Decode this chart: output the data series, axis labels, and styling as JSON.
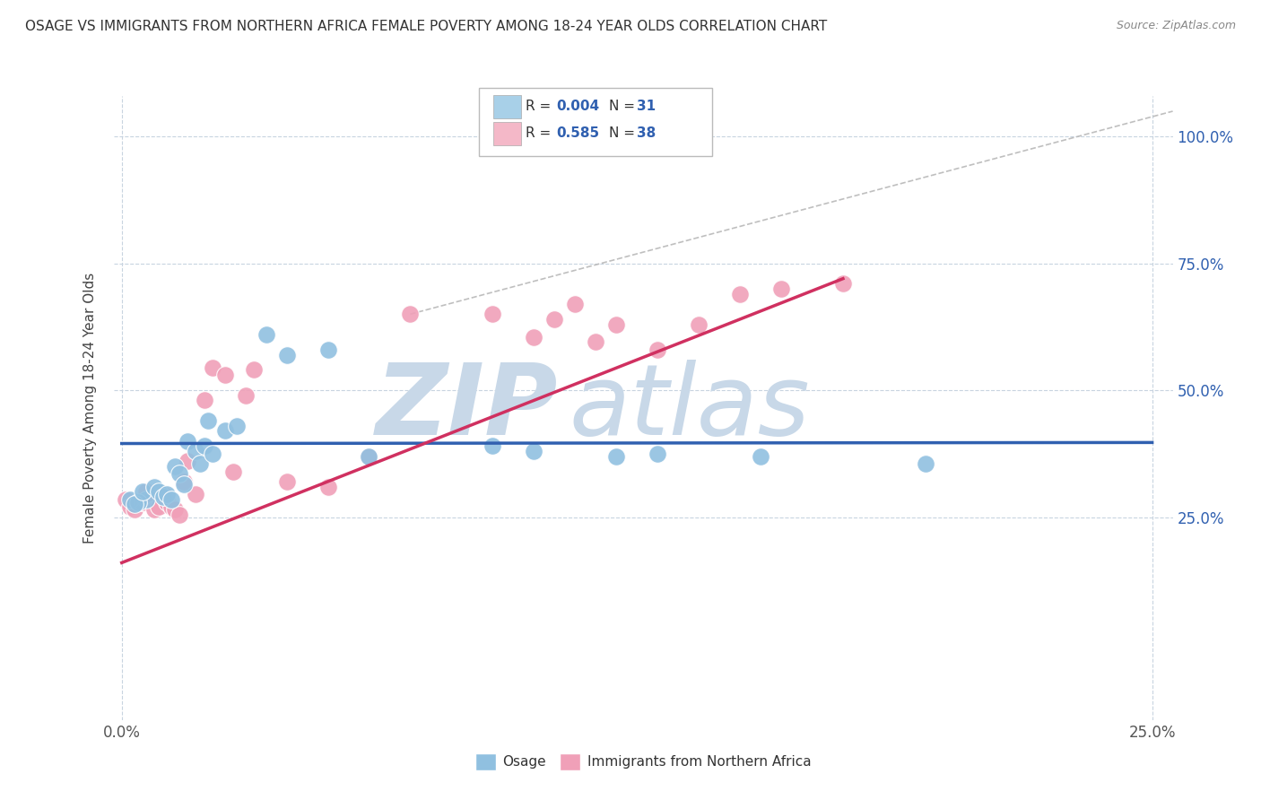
{
  "title": "OSAGE VS IMMIGRANTS FROM NORTHERN AFRICA FEMALE POVERTY AMONG 18-24 YEAR OLDS CORRELATION CHART",
  "source": "Source: ZipAtlas.com",
  "ylabel": "Female Poverty Among 18-24 Year Olds",
  "xlim": [
    -0.002,
    0.255
  ],
  "ylim": [
    -0.15,
    1.08
  ],
  "xtick_positions": [
    0.0,
    0.25
  ],
  "xtick_labels": [
    "0.0%",
    "25.0%"
  ],
  "ytick_positions": [
    0.25,
    0.5,
    0.75,
    1.0
  ],
  "ytick_labels": [
    "25.0%",
    "50.0%",
    "75.0%",
    "100.0%"
  ],
  "watermark_text": "ZIPatlas",
  "watermark_color": "#c8d8e8",
  "blue_scatter_color": "#90c0e0",
  "pink_scatter_color": "#f0a0b8",
  "trend_blue": "#3060b0",
  "trend_pink": "#d03060",
  "ref_line_color": "#b8b8b8",
  "grid_color": "#c8d4e0",
  "background_color": "#ffffff",
  "legend_box_color": "#cccccc",
  "legend_blue_fill": "#a8d0e8",
  "legend_pink_fill": "#f4b8c8",
  "R_N_color": "#3060b0",
  "osage_x": [
    0.002,
    0.006,
    0.004,
    0.003,
    0.005,
    0.008,
    0.009,
    0.01,
    0.011,
    0.012,
    0.013,
    0.014,
    0.015,
    0.016,
    0.018,
    0.019,
    0.02,
    0.021,
    0.022,
    0.025,
    0.028,
    0.035,
    0.04,
    0.05,
    0.06,
    0.09,
    0.1,
    0.12,
    0.13,
    0.155,
    0.195
  ],
  "osage_y": [
    0.285,
    0.285,
    0.28,
    0.275,
    0.3,
    0.31,
    0.3,
    0.29,
    0.295,
    0.285,
    0.35,
    0.335,
    0.315,
    0.4,
    0.38,
    0.355,
    0.39,
    0.44,
    0.375,
    0.42,
    0.43,
    0.61,
    0.57,
    0.58,
    0.37,
    0.39,
    0.38,
    0.37,
    0.375,
    0.37,
    0.355
  ],
  "pink_x": [
    0.001,
    0.002,
    0.003,
    0.004,
    0.005,
    0.006,
    0.007,
    0.008,
    0.009,
    0.01,
    0.011,
    0.012,
    0.013,
    0.014,
    0.015,
    0.016,
    0.018,
    0.02,
    0.022,
    0.025,
    0.027,
    0.03,
    0.032,
    0.04,
    0.05,
    0.06,
    0.07,
    0.09,
    0.1,
    0.105,
    0.11,
    0.115,
    0.12,
    0.13,
    0.14,
    0.15,
    0.16,
    0.175
  ],
  "pink_y": [
    0.285,
    0.27,
    0.265,
    0.28,
    0.28,
    0.3,
    0.285,
    0.265,
    0.27,
    0.295,
    0.28,
    0.27,
    0.265,
    0.255,
    0.32,
    0.36,
    0.295,
    0.48,
    0.545,
    0.53,
    0.34,
    0.49,
    0.54,
    0.32,
    0.31,
    0.37,
    0.65,
    0.65,
    0.605,
    0.64,
    0.67,
    0.595,
    0.63,
    0.58,
    0.63,
    0.69,
    0.7,
    0.71
  ],
  "blue_line_x": [
    0.0,
    0.25
  ],
  "blue_line_y": [
    0.395,
    0.397
  ],
  "pink_line_x": [
    0.0,
    0.175
  ],
  "pink_line_y": [
    0.16,
    0.72
  ],
  "ref_line_x": [
    0.07,
    0.255
  ],
  "ref_line_y": [
    0.65,
    1.05
  ]
}
